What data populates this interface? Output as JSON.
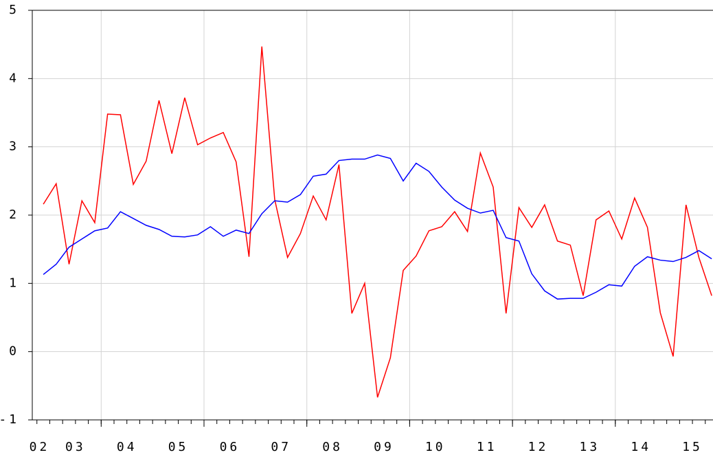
{
  "chart_data": {
    "type": "line",
    "x": [
      2.375,
      2.625,
      2.875,
      3.125,
      3.375,
      3.625,
      3.875,
      4.125,
      4.375,
      4.625,
      4.875,
      5.125,
      5.375,
      5.625,
      5.875,
      6.125,
      6.375,
      6.625,
      6.875,
      7.125,
      7.375,
      7.625,
      7.875,
      8.125,
      8.375,
      8.625,
      8.875,
      9.125,
      9.375,
      9.625,
      9.875,
      10.125,
      10.375,
      10.625,
      10.875,
      11.125,
      11.375,
      11.625,
      11.875,
      12.125,
      12.375,
      12.625,
      12.875,
      13.125,
      13.375,
      13.625,
      13.875,
      14.125,
      14.375,
      14.625,
      14.875,
      15.125,
      15.375
    ],
    "series": [
      {
        "color": "#ff0000",
        "values": [
          2.16,
          2.46,
          1.28,
          2.21,
          1.89,
          3.48,
          3.47,
          2.45,
          2.79,
          3.68,
          2.9,
          3.72,
          3.03,
          3.13,
          3.21,
          2.78,
          1.39,
          4.47,
          2.23,
          1.38,
          1.73,
          2.28,
          1.93,
          2.74,
          0.56,
          1.0,
          -0.67,
          -0.09,
          1.19,
          1.4,
          1.77,
          1.83,
          2.05,
          1.76,
          2.91,
          2.41,
          0.56,
          2.11,
          1.82,
          2.15,
          1.62,
          1.56,
          0.82,
          1.93,
          2.06,
          1.65,
          2.25,
          1.82,
          0.57,
          -0.07,
          2.15,
          1.38,
          0.82
        ]
      },
      {
        "color": "#0000ff",
        "values": [
          1.13,
          1.28,
          1.53,
          1.65,
          1.77,
          1.81,
          2.05,
          1.95,
          1.85,
          1.79,
          1.69,
          1.68,
          1.71,
          1.83,
          1.69,
          1.78,
          1.73,
          2.02,
          2.21,
          2.19,
          2.3,
          2.57,
          2.6,
          2.8,
          2.82,
          2.82,
          2.88,
          2.83,
          2.5,
          2.76,
          2.64,
          2.41,
          2.22,
          2.1,
          2.03,
          2.07,
          1.67,
          1.62,
          1.14,
          0.89,
          0.77,
          0.78,
          0.78,
          0.87,
          0.98,
          0.96,
          1.25,
          1.39,
          1.34,
          1.32,
          1.38,
          1.48,
          1.36
        ]
      }
    ],
    "xlim": [
      2.16,
      15.4
    ],
    "xticks": [
      {
        "value": 2.3,
        "label": "02"
      },
      {
        "value": 3,
        "label": "03"
      },
      {
        "value": 4,
        "label": "04"
      },
      {
        "value": 5,
        "label": "05"
      },
      {
        "value": 6,
        "label": "06"
      },
      {
        "value": 7,
        "label": "07"
      },
      {
        "value": 8,
        "label": "08"
      },
      {
        "value": 9,
        "label": "09"
      },
      {
        "value": 10,
        "label": "10"
      },
      {
        "value": 11,
        "label": "11"
      },
      {
        "value": 12,
        "label": "12"
      },
      {
        "value": 13,
        "label": "13"
      },
      {
        "value": 14,
        "label": "14"
      },
      {
        "value": 15,
        "label": "15"
      }
    ],
    "x_gridlines": [
      3.5,
      5.5,
      7.5,
      9.5,
      11.5,
      13.5
    ],
    "ylim": [
      -1,
      5
    ],
    "yticks": [
      -1,
      0,
      1,
      2,
      3,
      4,
      5
    ],
    "grid": true
  }
}
